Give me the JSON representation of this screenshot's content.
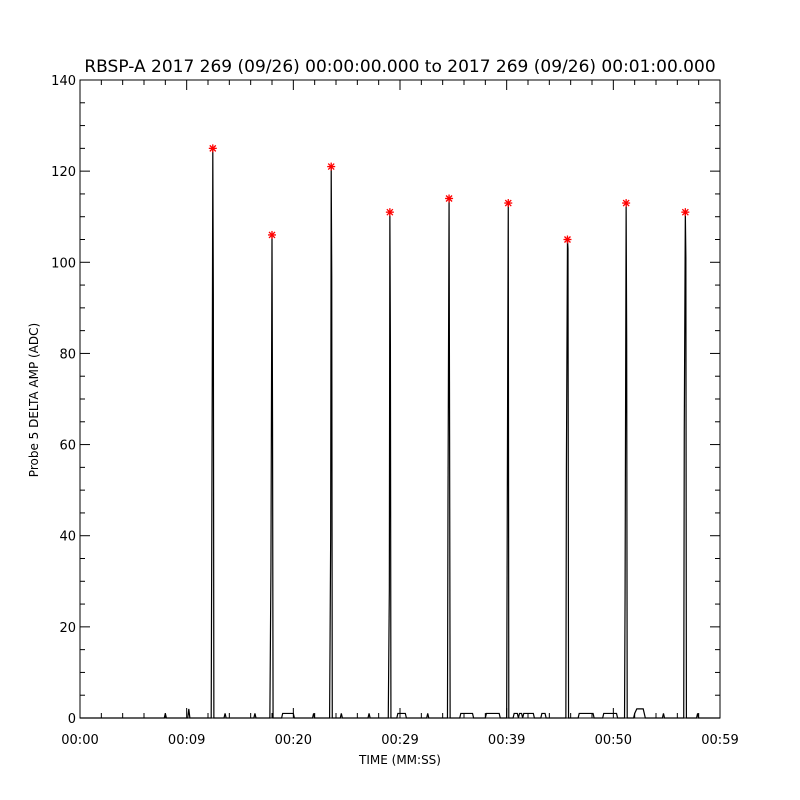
{
  "chart_data": {
    "type": "line",
    "title": "RBSP-A 2017 269 (09/26) 00:00:00.000 to 2017 269 (09/26) 00:01:00.000",
    "xlabel": "TIME (MM:SS)",
    "ylabel": "Probe 5 DELTA AMP (ADC)",
    "xlim_seconds": [
      0,
      60
    ],
    "ylim": [
      0,
      140
    ],
    "x_ticks": [
      {
        "t": 0,
        "label": "00:00"
      },
      {
        "t": 10,
        "label": "00:09"
      },
      {
        "t": 20,
        "label": "00:20"
      },
      {
        "t": 30,
        "label": "00:29"
      },
      {
        "t": 40,
        "label": "00:39"
      },
      {
        "t": 50,
        "label": "00:50"
      },
      {
        "t": 60,
        "label": "00:59"
      }
    ],
    "y_ticks": [
      0,
      20,
      40,
      60,
      80,
      100,
      120,
      140
    ],
    "grid": false,
    "line_color": "#000000",
    "marker_color": "#ff0000",
    "peaks": [
      {
        "t": 12.45,
        "value": 125
      },
      {
        "t": 18.0,
        "value": 106
      },
      {
        "t": 23.55,
        "value": 121
      },
      {
        "t": 29.05,
        "value": 111
      },
      {
        "t": 34.6,
        "value": 114
      },
      {
        "t": 40.15,
        "value": 113
      },
      {
        "t": 45.7,
        "value": 105
      },
      {
        "t": 51.2,
        "value": 113
      },
      {
        "t": 56.75,
        "value": 111
      }
    ],
    "series": [
      {
        "values": [
          [
            0,
            0
          ],
          [
            7.9,
            0
          ],
          [
            8.0,
            1
          ],
          [
            8.1,
            0
          ],
          [
            10.1,
            0
          ],
          [
            10.2,
            2
          ],
          [
            10.3,
            0
          ],
          [
            12.3,
            0
          ],
          [
            12.4,
            75
          ],
          [
            12.45,
            125
          ],
          [
            12.5,
            93
          ],
          [
            12.55,
            0
          ],
          [
            13.5,
            0
          ],
          [
            13.6,
            1
          ],
          [
            13.7,
            0
          ],
          [
            16.3,
            0
          ],
          [
            16.4,
            1
          ],
          [
            16.5,
            0
          ],
          [
            17.8,
            0
          ],
          [
            17.9,
            33
          ],
          [
            18.0,
            106
          ],
          [
            18.05,
            65
          ],
          [
            18.1,
            0
          ],
          [
            18.9,
            0
          ],
          [
            19.0,
            1
          ],
          [
            20.0,
            1
          ],
          [
            20.1,
            0
          ],
          [
            21.8,
            0
          ],
          [
            21.9,
            1
          ],
          [
            22.0,
            0
          ],
          [
            23.4,
            0
          ],
          [
            23.5,
            40
          ],
          [
            23.55,
            121
          ],
          [
            23.6,
            97
          ],
          [
            23.65,
            0
          ],
          [
            24.4,
            0
          ],
          [
            24.5,
            1
          ],
          [
            24.6,
            0
          ],
          [
            27.0,
            0
          ],
          [
            27.1,
            1
          ],
          [
            27.2,
            0
          ],
          [
            28.9,
            0
          ],
          [
            29.0,
            28
          ],
          [
            29.05,
            111
          ],
          [
            29.1,
            82
          ],
          [
            29.15,
            0
          ],
          [
            29.7,
            0
          ],
          [
            29.8,
            1
          ],
          [
            30.5,
            1
          ],
          [
            30.6,
            0
          ],
          [
            32.5,
            0
          ],
          [
            32.6,
            1
          ],
          [
            32.7,
            0
          ],
          [
            34.45,
            0
          ],
          [
            34.5,
            48
          ],
          [
            34.6,
            114
          ],
          [
            34.65,
            62
          ],
          [
            34.7,
            0
          ],
          [
            35.6,
            0
          ],
          [
            35.7,
            1
          ],
          [
            36.8,
            1
          ],
          [
            36.9,
            0
          ],
          [
            38.0,
            0
          ],
          [
            38.1,
            1
          ],
          [
            39.3,
            1
          ],
          [
            39.4,
            0
          ],
          [
            40.0,
            0
          ],
          [
            40.1,
            79
          ],
          [
            40.15,
            113
          ],
          [
            40.2,
            0
          ],
          [
            40.6,
            0
          ],
          [
            40.7,
            1
          ],
          [
            41.0,
            1
          ],
          [
            41.1,
            0
          ],
          [
            41.2,
            1
          ],
          [
            41.4,
            1
          ],
          [
            41.5,
            0
          ],
          [
            41.6,
            1
          ],
          [
            42.5,
            1
          ],
          [
            42.6,
            0
          ],
          [
            43.2,
            0
          ],
          [
            43.3,
            1
          ],
          [
            43.6,
            1
          ],
          [
            43.7,
            0
          ],
          [
            45.55,
            0
          ],
          [
            45.6,
            55
          ],
          [
            45.7,
            105
          ],
          [
            45.75,
            103
          ],
          [
            45.8,
            0
          ],
          [
            46.7,
            0
          ],
          [
            46.8,
            1
          ],
          [
            48.1,
            1
          ],
          [
            48.2,
            0
          ],
          [
            49.0,
            0
          ],
          [
            49.1,
            1
          ],
          [
            50.3,
            1
          ],
          [
            50.4,
            0
          ],
          [
            51.05,
            0
          ],
          [
            51.1,
            27
          ],
          [
            51.2,
            113
          ],
          [
            51.25,
            83
          ],
          [
            51.3,
            0
          ],
          [
            51.9,
            0
          ],
          [
            52.0,
            1
          ],
          [
            52.2,
            2
          ],
          [
            52.8,
            2
          ],
          [
            52.9,
            1
          ],
          [
            53.0,
            0
          ],
          [
            54.6,
            0
          ],
          [
            54.7,
            1
          ],
          [
            54.8,
            0
          ],
          [
            56.6,
            0
          ],
          [
            56.65,
            63
          ],
          [
            56.75,
            111
          ],
          [
            56.8,
            101
          ],
          [
            56.85,
            0
          ],
          [
            57.8,
            0
          ],
          [
            57.9,
            1
          ],
          [
            58.0,
            0
          ],
          [
            60,
            0
          ]
        ]
      }
    ]
  }
}
